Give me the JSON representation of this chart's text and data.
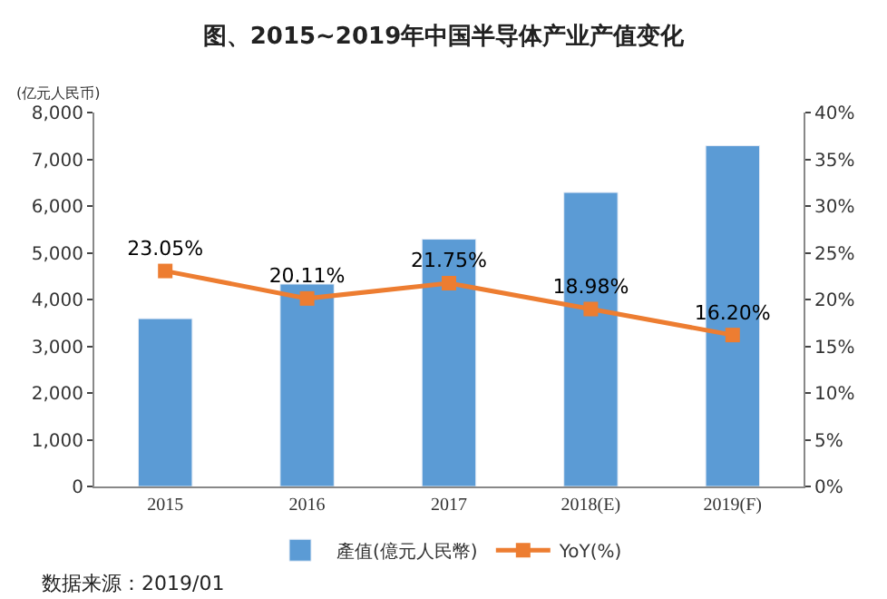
{
  "chart_data": {
    "type": "bar",
    "title": "图、2015~2019年中国半导体产业产值变化",
    "ylabel": "(亿元人民币)",
    "categories": [
      "2015",
      "2016",
      "2017",
      "2018(E)",
      "2019(F)"
    ],
    "series": [
      {
        "name": "產值(億元人民幣)",
        "color": "#5b9bd5",
        "values": [
          3590,
          4330,
          5290,
          6290,
          7290
        ]
      },
      {
        "name": "YoY(%)",
        "type": "line",
        "axis": "y2",
        "color": "#ed7d31",
        "marker": "square",
        "values": [
          23.05,
          20.11,
          21.75,
          18.98,
          16.2
        ],
        "value_labels": [
          "23.05%",
          "20.11%",
          "21.75%",
          "18.98%",
          "16.20%"
        ]
      }
    ],
    "ylim": [
      0,
      8000
    ],
    "yticks": [
      {
        "value": 0,
        "label": "0"
      },
      {
        "value": 1000,
        "label": "1,000"
      },
      {
        "value": 2000,
        "label": "2,000"
      },
      {
        "value": 3000,
        "label": "3,000"
      },
      {
        "value": 4000,
        "label": "4,000"
      },
      {
        "value": 5000,
        "label": "5,000"
      },
      {
        "value": 6000,
        "label": "6,000"
      },
      {
        "value": 7000,
        "label": "7,000"
      },
      {
        "value": 8000,
        "label": "8,000"
      }
    ],
    "y2lim": [
      0,
      40
    ],
    "y2ticks": [
      {
        "value": 0,
        "label": "0%"
      },
      {
        "value": 5,
        "label": "5%"
      },
      {
        "value": 10,
        "label": "10%"
      },
      {
        "value": 15,
        "label": "15%"
      },
      {
        "value": 20,
        "label": "20%"
      },
      {
        "value": 25,
        "label": "25%"
      },
      {
        "value": 30,
        "label": "30%"
      },
      {
        "value": 35,
        "label": "35%"
      },
      {
        "value": 40,
        "label": "40%"
      }
    ],
    "legend": "bottom",
    "annotations": [
      "数据来源：2019/01"
    ]
  }
}
